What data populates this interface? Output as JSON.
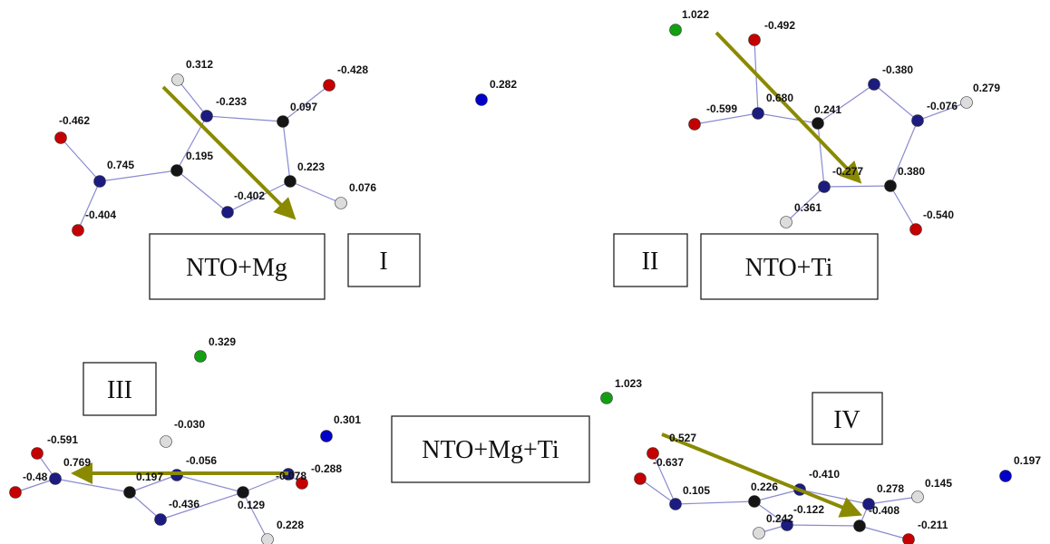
{
  "panels": [
    {
      "name": "NTO+Mg",
      "roman": "I",
      "charges": [
        "0.312",
        "-0.233",
        "-0.428",
        "0.097",
        "-0.462",
        "0.745",
        "0.195",
        "0.223",
        "-0.402",
        "0.076",
        "-0.404",
        "0.282"
      ]
    },
    {
      "name": "NTO+Ti",
      "roman": "II",
      "charges": [
        "1.022",
        "-0.492",
        "-0.380",
        "0.279",
        "-0.599",
        "0.680",
        "0.241",
        "-0.076",
        "-0.277",
        "0.380",
        "0.361",
        "-0.540"
      ]
    },
    {
      "name": "NTO+Mg+Ti",
      "roman": "III",
      "charges": [
        "0.329",
        "-0.030",
        "0.301",
        "-0.591",
        "0.769",
        "-0.48",
        "-0.056",
        "0.197",
        "-0.078",
        "-0.288",
        "0.129",
        "-0.436",
        "0.228",
        "1.023"
      ]
    },
    {
      "roman": "IV",
      "charges": [
        "0.527",
        "-0.637",
        "0.105",
        "0.226",
        "-0.410",
        "0.278",
        "0.145",
        "-0.122",
        "-0.408",
        "0.242",
        "-0.211",
        "0.197"
      ]
    }
  ]
}
